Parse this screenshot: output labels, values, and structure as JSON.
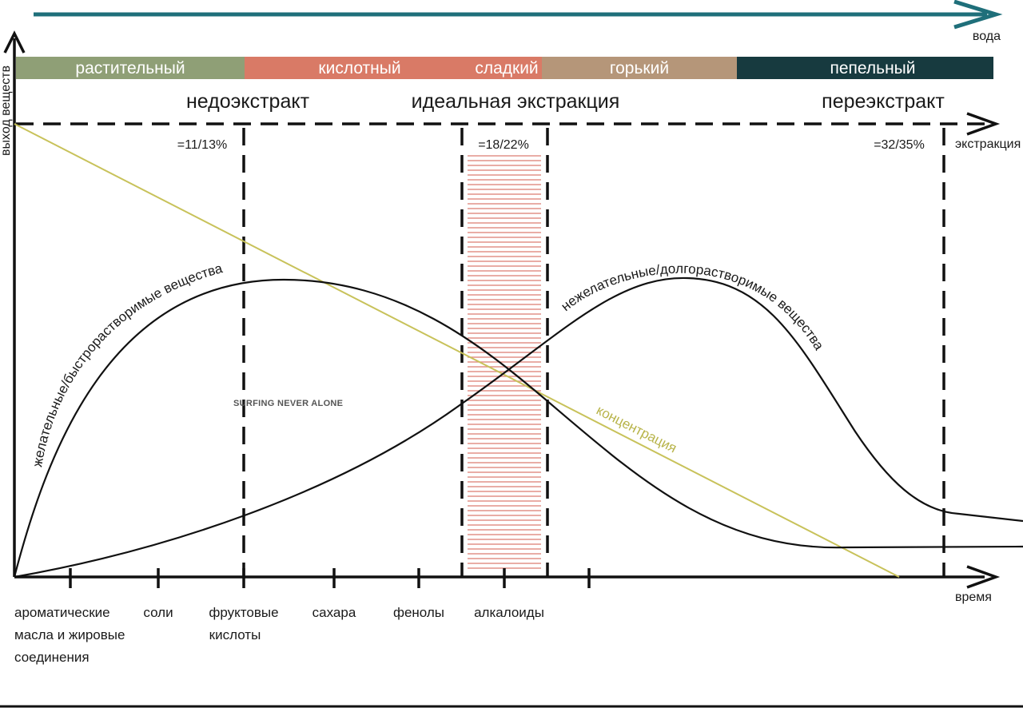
{
  "top_axis": {
    "label": "вода",
    "color": "#1f6f7a"
  },
  "y_axis": {
    "label": "выход веществ"
  },
  "extraction_axis": {
    "label": "экстракция"
  },
  "time_axis": {
    "label": "время"
  },
  "taste_bands": [
    {
      "label": "растительный",
      "color": "#8f9f76"
    },
    {
      "label": "кислотный",
      "color": "#d97a66"
    },
    {
      "label": "сладкий",
      "color": "#d97a66"
    },
    {
      "label": "горький",
      "color": "#b59679"
    },
    {
      "label": "пепельный",
      "color": "#173a3f"
    }
  ],
  "zones": [
    {
      "label": "недоэкстракт",
      "marker": "=11/13%"
    },
    {
      "label": "идеальная экстракция",
      "marker": "=18/22%"
    },
    {
      "label": "переэкстракт",
      "marker": "=32/35%"
    }
  ],
  "ideal_zone_color": "#e08a80",
  "compounds": [
    {
      "line1": "ароматические",
      "line2": "масла и жировые",
      "line3": "соединения"
    },
    {
      "line1": "соли"
    },
    {
      "line1": "фруктовые",
      "line2": "кислоты"
    },
    {
      "line1": "сахара"
    },
    {
      "line1": "фенолы"
    },
    {
      "line1": "алкалоиды"
    }
  ],
  "curves": {
    "desirable": "желательные/быстрорастворимые вещества",
    "undesirable": "нежелательные/долгорастворимые вещества",
    "concentration": "концентрация",
    "concentration_color": "#c8c25a"
  },
  "watermark": "SURFING  NEVER ALONE"
}
